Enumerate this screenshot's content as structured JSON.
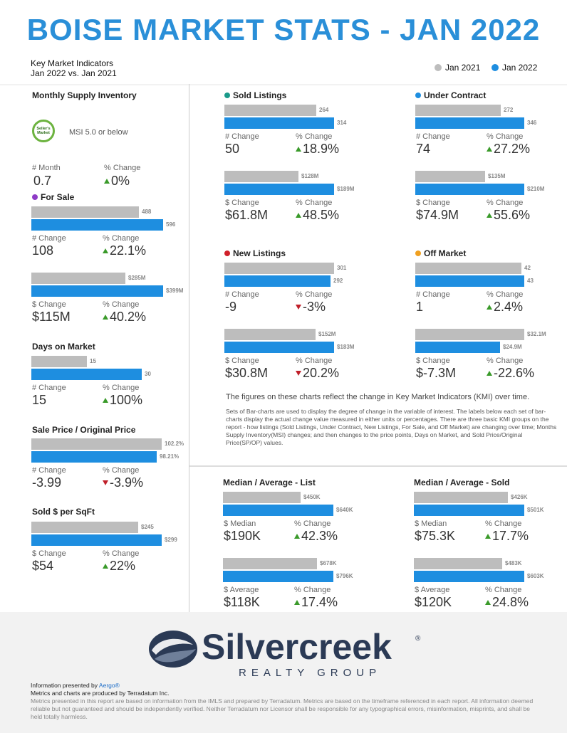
{
  "title": "BOISE MARKET STATS - JAN 2022",
  "subtitle": {
    "line1": "Key Market Indicators",
    "line2": "Jan 2022 vs. Jan 2021"
  },
  "legend": [
    {
      "name": "Jan 2021",
      "color": "#bdbdbd"
    },
    {
      "name": "Jan 2022",
      "color": "#1e8ee0"
    }
  ],
  "colors": {
    "jan2021": "#bdbdbd",
    "jan2022": "#1e8ee0",
    "up": "#3a9a2a",
    "down": "#c0202a"
  },
  "msi": {
    "title": "Monthly Supply Inventory",
    "badge": "Seller's Market",
    "badge_text": "MSI 5.0 or below",
    "metrics": [
      {
        "label": "# Month",
        "value": "0.7"
      },
      {
        "label": "% Change",
        "value": "0%",
        "dir": "up"
      }
    ]
  },
  "chart_data": [
    {
      "id": "for_sale_count",
      "type": "bar",
      "title": "For Sale",
      "dot": "#8e3bc6",
      "values": [
        488,
        596
      ],
      "labels": [
        "488",
        "596"
      ],
      "max": 596,
      "metrics": [
        {
          "label": "# Change",
          "value": "108"
        },
        {
          "label": "% Change",
          "value": "22.1%",
          "dir": "up"
        }
      ]
    },
    {
      "id": "for_sale_volume",
      "type": "bar",
      "values": [
        285,
        399
      ],
      "labels": [
        "$285M",
        "$399M"
      ],
      "max": 399,
      "metrics": [
        {
          "label": "$ Change",
          "value": "$115M"
        },
        {
          "label": "% Change",
          "value": "40.2%",
          "dir": "up"
        }
      ]
    },
    {
      "id": "days_on_market",
      "type": "bar",
      "title": "Days on Market",
      "values": [
        15,
        30
      ],
      "labels": [
        "15",
        "30"
      ],
      "max": 30,
      "metrics": [
        {
          "label": "# Change",
          "value": "15"
        },
        {
          "label": "% Change",
          "value": "100%",
          "dir": "up"
        }
      ]
    },
    {
      "id": "sp_op",
      "type": "bar",
      "title": "Sale Price / Original Price",
      "values": [
        102.2,
        98.21
      ],
      "labels": [
        "102.2%",
        "98.21%"
      ],
      "max": 102.2,
      "metrics": [
        {
          "label": "# Change",
          "value": "-3.99"
        },
        {
          "label": "% Change",
          "value": "-3.9%",
          "dir": "down"
        }
      ]
    },
    {
      "id": "sold_per_sqft",
      "type": "bar",
      "title": "Sold $ per SqFt",
      "values": [
        245,
        299
      ],
      "labels": [
        "$245",
        "$299"
      ],
      "max": 299,
      "metrics": [
        {
          "label": "$ Change",
          "value": "$54"
        },
        {
          "label": "% Change",
          "value": "22%",
          "dir": "up"
        }
      ]
    },
    {
      "id": "sold_count",
      "type": "bar",
      "title": "Sold Listings",
      "dot": "#1a9a8a",
      "values": [
        264,
        314
      ],
      "labels": [
        "264",
        "314"
      ],
      "max": 314,
      "metrics": [
        {
          "label": "# Change",
          "value": "50"
        },
        {
          "label": "% Change",
          "value": "18.9%",
          "dir": "up"
        }
      ]
    },
    {
      "id": "sold_volume",
      "type": "bar",
      "values": [
        128,
        189
      ],
      "labels": [
        "$128M",
        "$189M"
      ],
      "max": 189,
      "metrics": [
        {
          "label": "$ Change",
          "value": "$61.8M"
        },
        {
          "label": "% Change",
          "value": "48.5%",
          "dir": "up"
        }
      ]
    },
    {
      "id": "under_contract_count",
      "type": "bar",
      "title": "Under Contract",
      "dot": "#1e8ee0",
      "values": [
        272,
        346
      ],
      "labels": [
        "272",
        "346"
      ],
      "max": 346,
      "metrics": [
        {
          "label": "# Change",
          "value": "74"
        },
        {
          "label": "% Change",
          "value": "27.2%",
          "dir": "up"
        }
      ]
    },
    {
      "id": "under_contract_volume",
      "type": "bar",
      "values": [
        135,
        210
      ],
      "labels": [
        "$135M",
        "$210M"
      ],
      "max": 210,
      "metrics": [
        {
          "label": "$ Change",
          "value": "$74.9M"
        },
        {
          "label": "% Change",
          "value": "55.6%",
          "dir": "up"
        }
      ]
    },
    {
      "id": "new_listings_count",
      "type": "bar",
      "title": "New Listings",
      "dot": "#d0202a",
      "values": [
        301,
        292
      ],
      "labels": [
        "301",
        "292"
      ],
      "max": 301,
      "metrics": [
        {
          "label": "# Change",
          "value": "-9"
        },
        {
          "label": "% Change",
          "value": "-3%",
          "dir": "down"
        }
      ]
    },
    {
      "id": "new_listings_volume",
      "type": "bar",
      "values": [
        152,
        183
      ],
      "labels": [
        "$152M",
        "$183M"
      ],
      "max": 183,
      "metrics": [
        {
          "label": "$ Change",
          "value": "$30.8M"
        },
        {
          "label": "% Change",
          "value": "20.2%",
          "dir": "down"
        }
      ]
    },
    {
      "id": "off_market_count",
      "type": "bar",
      "title": "Off Market",
      "dot": "#f0a020",
      "values": [
        42,
        43
      ],
      "labels": [
        "42",
        "43"
      ],
      "max": 43,
      "metrics": [
        {
          "label": "# Change",
          "value": "1"
        },
        {
          "label": "% Change",
          "value": "2.4%",
          "dir": "up"
        }
      ]
    },
    {
      "id": "off_market_volume",
      "type": "bar",
      "values": [
        32.1,
        24.9
      ],
      "labels": [
        "$32.1M",
        "$24.9M"
      ],
      "max": 32.1,
      "metrics": [
        {
          "label": "$ Change",
          "value": "$-7.3M"
        },
        {
          "label": "% Change",
          "value": "-22.6%",
          "dir": "up"
        }
      ]
    },
    {
      "id": "list_median",
      "type": "bar",
      "title": "Median / Average - List",
      "values": [
        450,
        640
      ],
      "labels": [
        "$450K",
        "$640K"
      ],
      "max": 640,
      "metrics": [
        {
          "label": "$ Median",
          "value": "$190K"
        },
        {
          "label": "% Change",
          "value": "42.3%",
          "dir": "up"
        }
      ]
    },
    {
      "id": "list_average",
      "type": "bar",
      "values": [
        678,
        796
      ],
      "labels": [
        "$678K",
        "$796K"
      ],
      "max": 796,
      "metrics": [
        {
          "label": "$ Average",
          "value": "$118K"
        },
        {
          "label": "% Change",
          "value": "17.4%",
          "dir": "up"
        }
      ]
    },
    {
      "id": "sold_median",
      "type": "bar",
      "title": "Median / Average - Sold",
      "values": [
        426,
        501
      ],
      "labels": [
        "$426K",
        "$501K"
      ],
      "max": 501,
      "metrics": [
        {
          "label": "$ Median",
          "value": "$75.3K"
        },
        {
          "label": "% Change",
          "value": "17.7%",
          "dir": "up"
        }
      ]
    },
    {
      "id": "sold_average",
      "type": "bar",
      "values": [
        483,
        603
      ],
      "labels": [
        "$483K",
        "$603K"
      ],
      "max": 603,
      "metrics": [
        {
          "label": "$ Average",
          "value": "$120K"
        },
        {
          "label": "% Change",
          "value": "24.8%",
          "dir": "up"
        }
      ]
    }
  ],
  "notes": {
    "headline": "The figures on these charts reflect the change in Key Market Indicators (KMI) over time.",
    "body": "Sets of Bar-charts are used to display the degree of change in the variable of interest. The labels below each set of bar-charts display the actual change value measured in either units or percentages. There are three basic KMI groups on the report - how listings (Sold Listings, Under Contract, New Listings, For Sale, and Off Market) are changing over time; Months Supply Inventory(MSI) changes; and then changes to the price points, Days on Market, and Sold Price/Original Price(SP/OP) values."
  },
  "logo": {
    "name": "Silvercreek",
    "tagline": "REALTY GROUP",
    "mark": "®"
  },
  "footer": {
    "presented_prefix": "Information presented by ",
    "presented_brand": "Aergo®",
    "produced": "Metrics and charts are produced by Terradatum Inc.",
    "disclaimer": "Metrics presented in this report are based on information from the IMLS and prepared by Terradatum. Metrics are based on the timeframe referenced in each report. All information deemed reliable but not guaranteed and should be independently verified. Neither Terradatum nor Licensor shall be responsible for any typographical errors, misinformation, misprints, and shall be held totally harmless."
  }
}
